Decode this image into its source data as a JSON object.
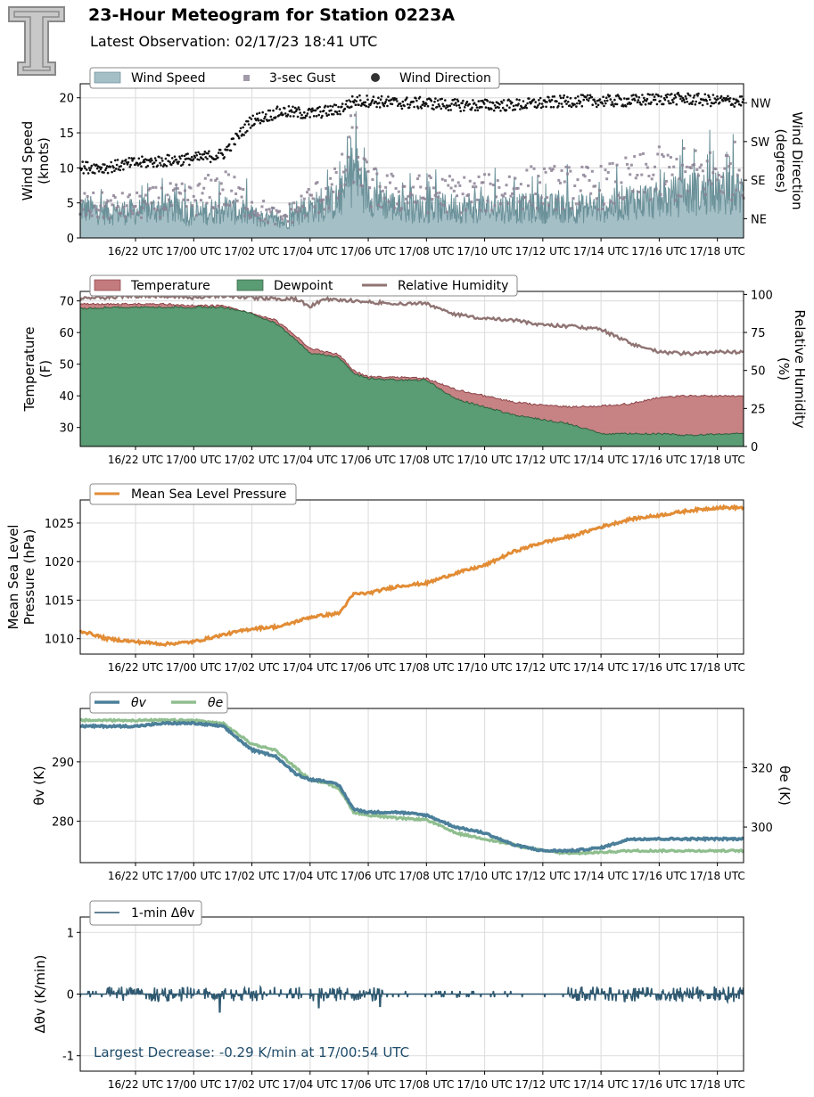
{
  "header": {
    "title": "23-Hour Meteogram for Station 0223A",
    "subtitle": "Latest Observation: 02/17/23 18:41 UTC",
    "logo_letter": "T"
  },
  "time_axis": {
    "ticks": [
      "16/22 UTC",
      "17/00 UTC",
      "17/02 UTC",
      "17/04 UTC",
      "17/06 UTC",
      "17/08 UTC",
      "17/10 UTC",
      "17/12 UTC",
      "17/14 UTC",
      "17/16 UTC",
      "17/18 UTC"
    ],
    "start_hour": 20.1,
    "end_hour": 42.9
  },
  "chart_data": [
    {
      "type": "area",
      "id": "wind",
      "legend": [
        "Wind Speed",
        "3-sec Gust",
        "Wind Direction"
      ],
      "ylabel": "Wind Speed\n(knots)",
      "ylabel_right": "Wind Direction\n(degrees)",
      "ylim": [
        0,
        22
      ],
      "yticks": [
        0,
        5,
        10,
        15,
        20
      ],
      "yticks_right": [
        "NE",
        "SE",
        "SW",
        "NW"
      ],
      "ylim_right": [
        0,
        360
      ],
      "yticks_right_values": [
        45,
        135,
        225,
        315
      ],
      "x": [
        20.1,
        21,
        22,
        23,
        24,
        25,
        26,
        27,
        28,
        29,
        29.5,
        30,
        31,
        32,
        33,
        34,
        35,
        36,
        37,
        38,
        39,
        40,
        41,
        42,
        42.9
      ],
      "wind_speed": [
        4,
        3.5,
        3.5,
        4,
        3,
        4,
        3,
        2,
        4,
        5,
        9,
        6,
        4,
        4,
        4,
        4,
        4,
        4,
        4,
        4,
        5,
        5,
        6,
        6,
        6
      ],
      "gust": [
        5,
        5,
        5,
        6,
        6,
        8,
        5,
        3,
        6,
        8,
        15,
        8,
        7,
        7,
        7,
        7,
        8,
        8,
        8,
        8,
        9,
        10,
        10,
        10,
        11
      ],
      "wind_direction": [
        165,
        165,
        175,
        180,
        185,
        195,
        275,
        295,
        290,
        300,
        320,
        320,
        315,
        315,
        310,
        310,
        310,
        315,
        320,
        320,
        320,
        325,
        325,
        320,
        320
      ],
      "colors": {
        "speed_fill": "#a5bfc6",
        "speed_line": "#6b9199",
        "gust": "#8c8194",
        "direction": "#111111"
      },
      "legend_location": "top-left"
    },
    {
      "type": "area",
      "id": "temp",
      "legend": [
        "Temperature",
        "Dewpoint",
        "Relative Humidity"
      ],
      "ylabel": "Temperature\n(F)",
      "ylabel_right": "Relative Humidity\n(%)",
      "ylim": [
        24,
        73
      ],
      "yticks": [
        30,
        40,
        50,
        60,
        70
      ],
      "ylim_right": [
        0,
        102
      ],
      "yticks_right": [
        0,
        25,
        50,
        75,
        100
      ],
      "x": [
        20.1,
        21,
        22,
        23,
        24,
        25,
        26,
        26.8,
        27.5,
        28,
        28.5,
        29,
        29.5,
        30,
        31,
        32,
        33,
        34,
        35,
        36,
        37,
        38,
        39,
        40,
        41,
        42,
        42.9
      ],
      "temperature": [
        69,
        69,
        69,
        69,
        68.5,
        68.5,
        66,
        64,
        59,
        55,
        54,
        53,
        48,
        46,
        46,
        45.5,
        42,
        40,
        38,
        37,
        36.5,
        36.8,
        37.5,
        39.5,
        40,
        40,
        40
      ],
      "dewpoint": [
        67.5,
        68,
        68,
        68,
        68,
        68,
        66,
        63,
        58,
        53.5,
        53,
        52,
        47,
        45.5,
        45,
        45,
        39,
        36.5,
        34,
        32.5,
        31,
        28,
        28,
        28,
        27.5,
        28,
        28
      ],
      "relative_humidity": [
        97,
        98,
        99,
        99,
        98,
        99,
        98,
        97,
        97,
        92,
        97,
        96,
        96,
        95,
        94,
        94,
        87,
        84,
        83,
        80,
        79,
        77,
        68,
        62,
        61,
        62,
        62
      ],
      "colors": {
        "temperature": "#c47b7d",
        "dewpoint": "#5a9c74",
        "rh": "#8f7473"
      },
      "legend_location": "top-left"
    },
    {
      "type": "line",
      "id": "pressure",
      "legend": [
        "Mean Sea Level Pressure"
      ],
      "ylabel": "Mean Sea Level\nPressure (hPa)",
      "ylim": [
        1008,
        1028
      ],
      "yticks": [
        1010,
        1015,
        1020,
        1025
      ],
      "x": [
        20.1,
        20.5,
        21,
        22,
        23,
        24,
        25,
        26,
        27,
        28,
        29,
        29.5,
        30,
        31,
        32,
        33,
        34,
        35,
        36,
        37,
        38,
        39,
        40,
        41,
        42,
        42.9
      ],
      "values": [
        1011,
        1010.6,
        1010,
        1009.6,
        1009.3,
        1009.6,
        1010.5,
        1011.3,
        1011.6,
        1012.8,
        1013.3,
        1015.8,
        1015.9,
        1016.8,
        1017.2,
        1018.5,
        1019.5,
        1021.3,
        1022.5,
        1023.3,
        1024.5,
        1025.5,
        1026,
        1026.6,
        1027,
        1027
      ],
      "colors": {
        "line": "#e28c35"
      },
      "legend_location": "top-left"
    },
    {
      "type": "line",
      "id": "theta",
      "legend": [
        "θv",
        "θe"
      ],
      "ylabel": "θv (K)",
      "ylabel_right": "θe (K)",
      "ylim": [
        273,
        299
      ],
      "yticks": [
        280,
        290
      ],
      "ylim_right": [
        288,
        340
      ],
      "yticks_right": [
        300,
        320
      ],
      "x": [
        20.1,
        21,
        22,
        23,
        24,
        25,
        26,
        26.8,
        27.5,
        28,
        28.5,
        29,
        29.5,
        30,
        31,
        32,
        33,
        34,
        35,
        36,
        37,
        38,
        39,
        40,
        41,
        42,
        42.9
      ],
      "theta_v": [
        296,
        296,
        296,
        296.5,
        296.5,
        296,
        292,
        291,
        288,
        287,
        286.8,
        286,
        282,
        281.5,
        281.5,
        281,
        279,
        278,
        276,
        275,
        275,
        275.5,
        277,
        277,
        277,
        277,
        277
      ],
      "theta_e": [
        336,
        336,
        336,
        336,
        336,
        335,
        328,
        326,
        320,
        316,
        315,
        313,
        305,
        304,
        303,
        302.5,
        298,
        296,
        294,
        292,
        291,
        291.5,
        292,
        292,
        292,
        292,
        292
      ],
      "colors": {
        "theta_v": "#4b7f9a",
        "theta_e": "#8fbe8e"
      },
      "legend_location": "top-left"
    },
    {
      "type": "line",
      "id": "dtheta",
      "legend": [
        "1-min Δθv"
      ],
      "ylabel": "Δθv (K/min)",
      "ylim": [
        -1.25,
        1.25
      ],
      "yticks": [
        -1,
        0,
        1
      ],
      "annotation": "Largest Decrease: -0.29 K/min at 17/00:54 UTC",
      "min_value": -0.29,
      "min_time": 24.9,
      "colors": {
        "line": "#2e5870",
        "annotation": "#1f4c6b"
      },
      "legend_location": "top-left"
    }
  ]
}
